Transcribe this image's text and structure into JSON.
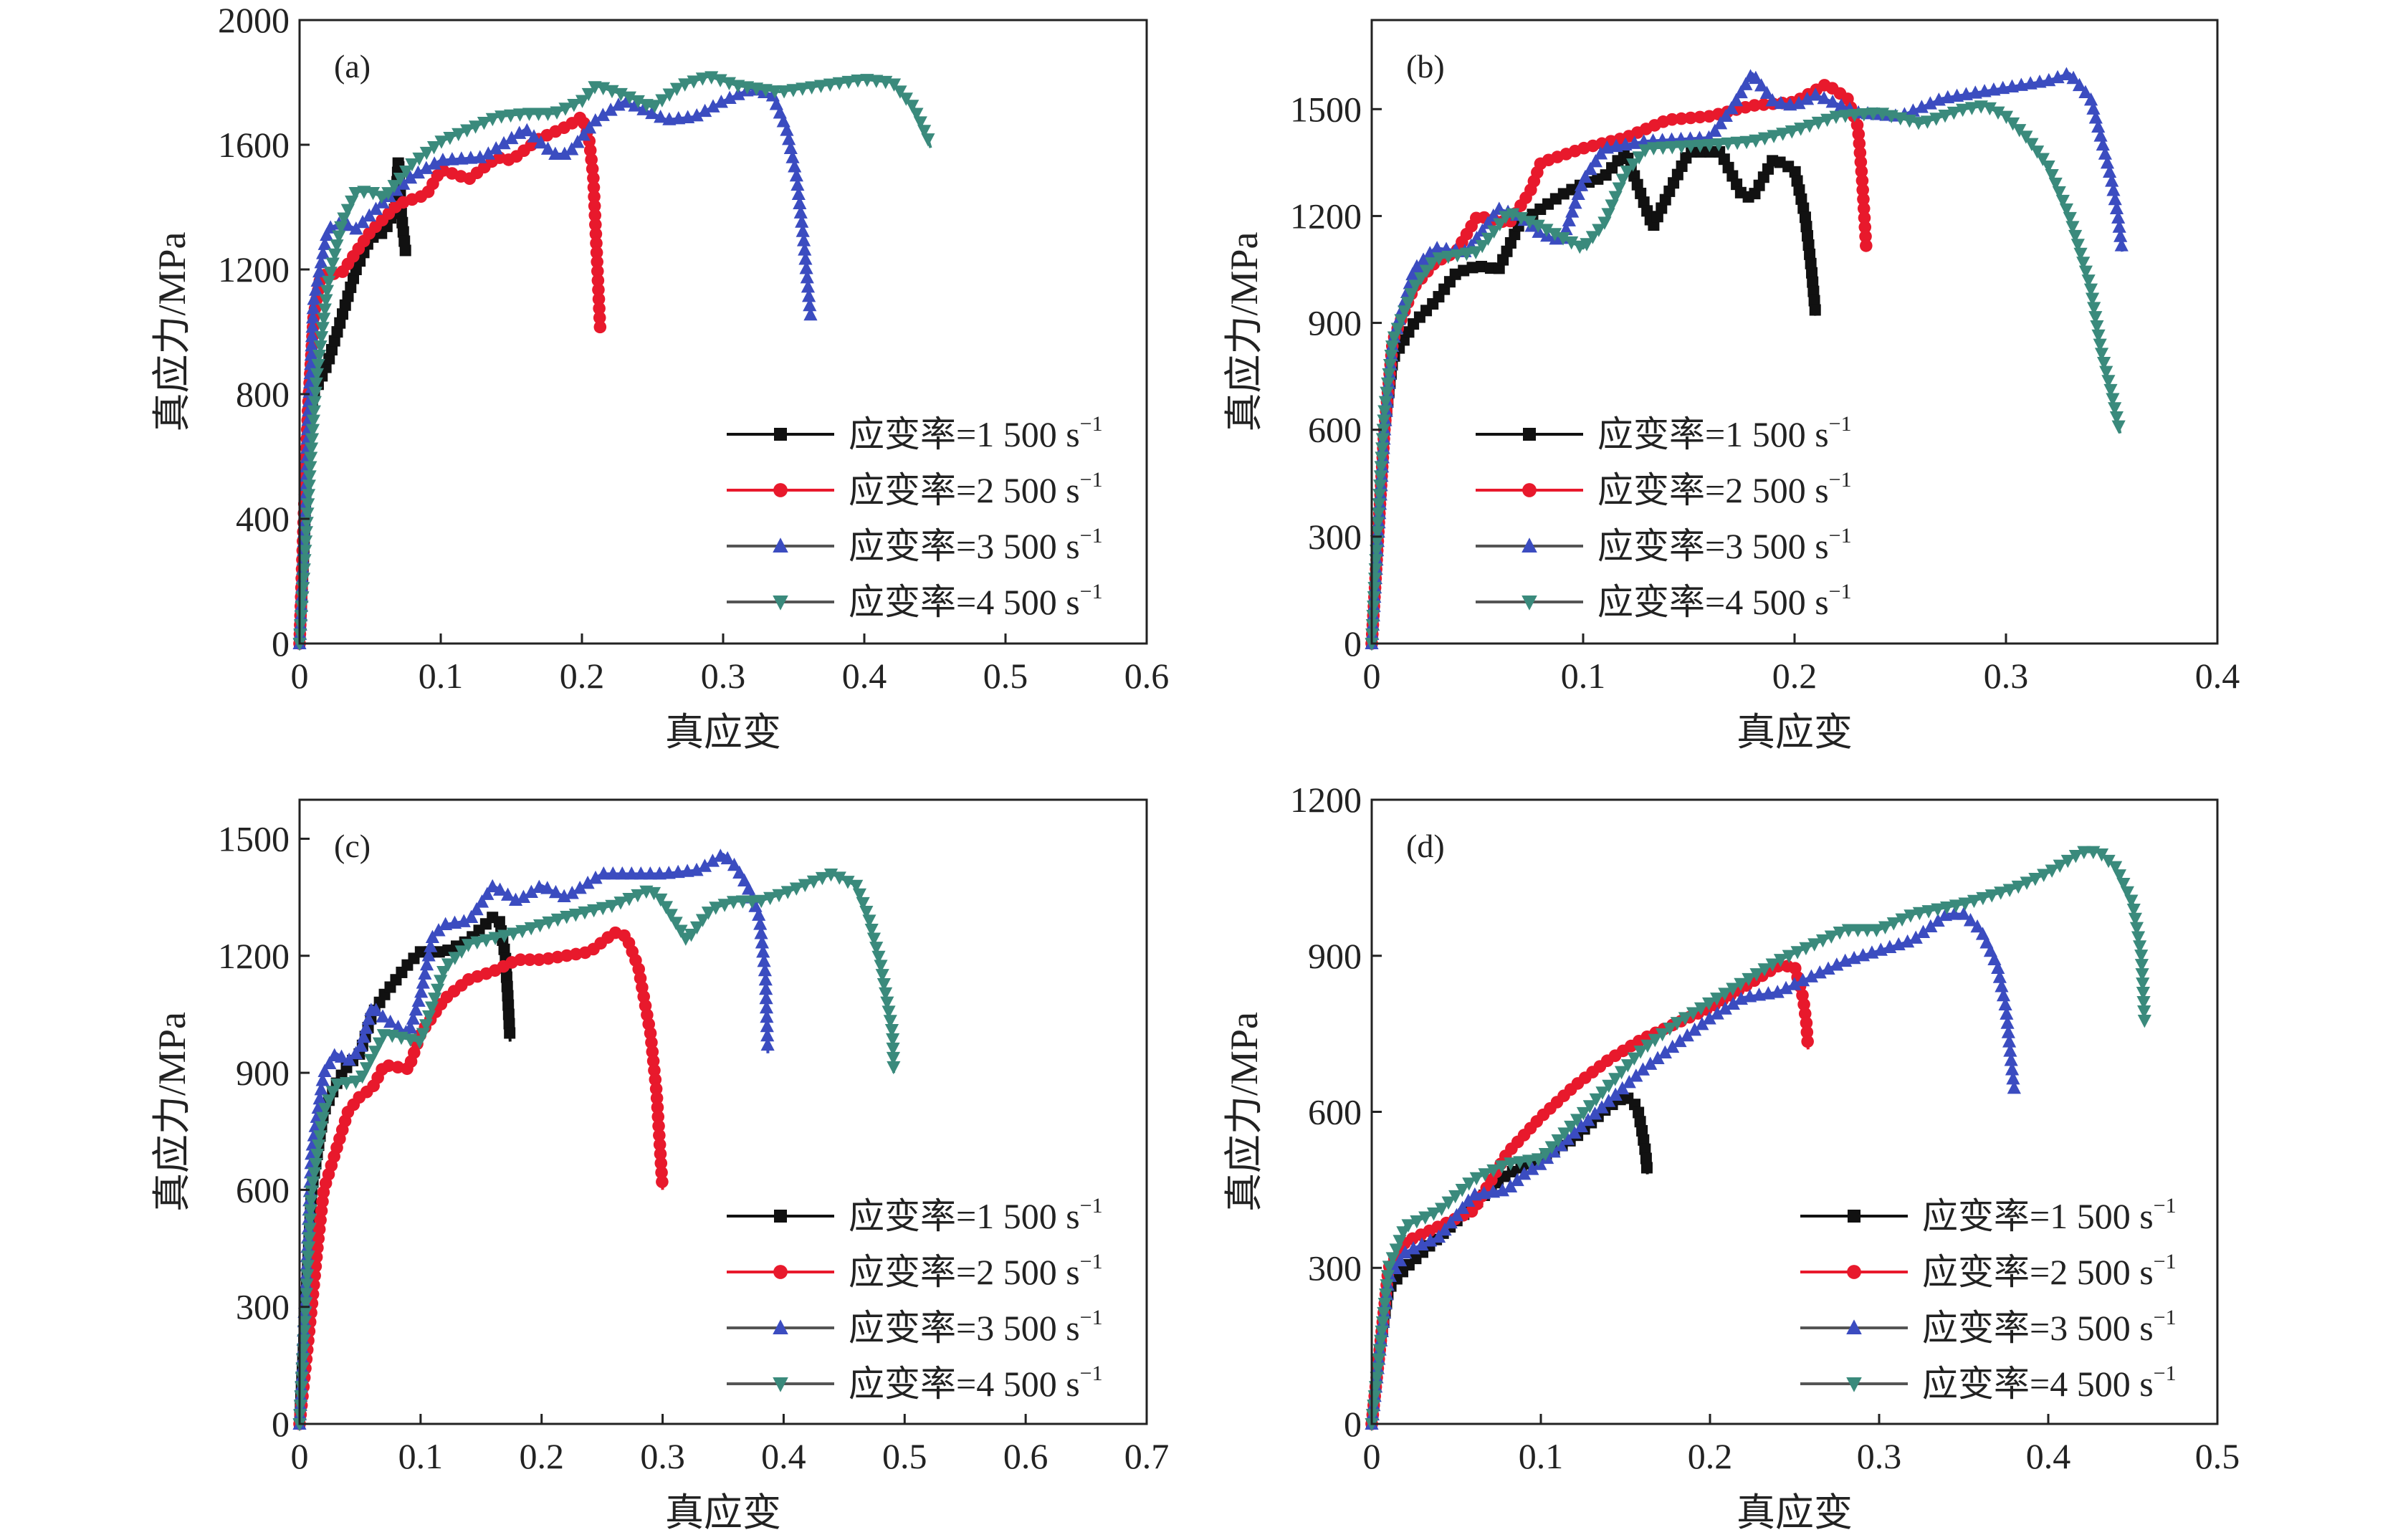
{
  "chart_data": [
    {
      "type": "line",
      "panel_label": "(a)",
      "xlabel": "真应变",
      "ylabel": "真应力/MPa",
      "xlim": [
        0,
        0.6
      ],
      "ylim": [
        0,
        2000
      ],
      "xticks": [
        0,
        0.1,
        0.2,
        0.3,
        0.4,
        0.5,
        0.6
      ],
      "xtick_labels": [
        "0",
        "0.1",
        "0.2",
        "0.3",
        "0.4",
        "0.5",
        "0.6"
      ],
      "yticks": [
        0,
        400,
        800,
        1200,
        1600,
        2000
      ],
      "ytick_labels": [
        "0",
        "400",
        "800",
        "1200",
        "1600",
        "2000"
      ],
      "grid": false,
      "legend_position": "lower-right",
      "series": [
        {
          "name": "应变率=1 500 s",
          "name_sup": "−1",
          "color": "#111111",
          "marker": "square",
          "x": [
            0,
            0.003,
            0.006,
            0.01,
            0.02,
            0.03,
            0.04,
            0.05,
            0.06,
            0.068,
            0.07,
            0.072,
            0.075
          ],
          "y": [
            0,
            300,
            700,
            800,
            900,
            1050,
            1200,
            1300,
            1320,
            1400,
            1550,
            1380,
            1260
          ]
        },
        {
          "name": "应变率=2 500 s",
          "name_sup": "−1",
          "color": "#e8192c",
          "marker": "circle",
          "x": [
            0,
            0.003,
            0.006,
            0.01,
            0.015,
            0.03,
            0.05,
            0.07,
            0.09,
            0.1,
            0.12,
            0.14,
            0.15,
            0.17,
            0.19,
            0.2,
            0.205,
            0.208,
            0.21,
            0.212,
            0.213
          ],
          "y": [
            0,
            400,
            750,
            1050,
            1180,
            1190,
            1320,
            1410,
            1440,
            1520,
            1490,
            1560,
            1550,
            1620,
            1660,
            1690,
            1620,
            1500,
            1300,
            1100,
            1000
          ]
        },
        {
          "name": "应变率=3 500 s",
          "name_sup": "−1",
          "color": "#3b4cc0",
          "marker": "triangle-up",
          "x": [
            0,
            0.003,
            0.006,
            0.01,
            0.02,
            0.03,
            0.04,
            0.06,
            0.08,
            0.1,
            0.13,
            0.16,
            0.18,
            0.19,
            0.21,
            0.23,
            0.26,
            0.28,
            0.3,
            0.32,
            0.335,
            0.345,
            0.352,
            0.357,
            0.36,
            0.362
          ],
          "y": [
            0,
            300,
            700,
            1100,
            1330,
            1350,
            1330,
            1420,
            1500,
            1550,
            1560,
            1650,
            1570,
            1570,
            1680,
            1740,
            1680,
            1690,
            1740,
            1780,
            1760,
            1650,
            1500,
            1300,
            1150,
            1050
          ]
        },
        {
          "name": "应变率=4 500 s",
          "name_sup": "−1",
          "color": "#3a8a7c",
          "marker": "triangle-down",
          "x": [
            0,
            0.004,
            0.008,
            0.012,
            0.02,
            0.03,
            0.04,
            0.05,
            0.06,
            0.08,
            0.1,
            0.12,
            0.14,
            0.16,
            0.18,
            0.2,
            0.21,
            0.23,
            0.25,
            0.27,
            0.29,
            0.31,
            0.34,
            0.37,
            0.4,
            0.42,
            0.435,
            0.445,
            0.447
          ],
          "y": [
            0,
            300,
            600,
            850,
            1150,
            1350,
            1450,
            1450,
            1430,
            1540,
            1610,
            1650,
            1690,
            1700,
            1700,
            1740,
            1790,
            1760,
            1720,
            1790,
            1820,
            1790,
            1770,
            1790,
            1810,
            1800,
            1720,
            1620,
            1590
          ]
        }
      ]
    },
    {
      "type": "line",
      "panel_label": "(b)",
      "xlabel": "真应变",
      "ylabel": "真应力/MPa",
      "xlim": [
        0,
        0.4
      ],
      "ylim": [
        0,
        1750
      ],
      "xticks": [
        0,
        0.1,
        0.2,
        0.3,
        0.4
      ],
      "xtick_labels": [
        "0",
        "0.1",
        "0.2",
        "0.3",
        "0.4"
      ],
      "yticks": [
        0,
        300,
        600,
        900,
        1200,
        1500
      ],
      "ytick_labels": [
        "0",
        "300",
        "600",
        "900",
        "1200",
        "1500"
      ],
      "grid": false,
      "legend_position": "lower-center",
      "series": [
        {
          "name": "应变率=1 500 s",
          "name_sup": "−1",
          "color": "#111111",
          "marker": "square",
          "x": [
            0,
            0.003,
            0.006,
            0.01,
            0.02,
            0.03,
            0.04,
            0.05,
            0.06,
            0.07,
            0.09,
            0.1,
            0.11,
            0.12,
            0.128,
            0.133,
            0.14,
            0.15,
            0.165,
            0.175,
            0.18,
            0.19,
            0.2,
            0.205,
            0.208,
            0.21
          ],
          "y": [
            0,
            300,
            600,
            800,
            900,
            960,
            1040,
            1060,
            1050,
            1180,
            1260,
            1290,
            1310,
            1380,
            1250,
            1170,
            1260,
            1380,
            1380,
            1260,
            1250,
            1360,
            1330,
            1200,
            1050,
            920
          ]
        },
        {
          "name": "应变率=2 500 s",
          "name_sup": "−1",
          "color": "#e8192c",
          "marker": "circle",
          "x": [
            0,
            0.003,
            0.006,
            0.01,
            0.02,
            0.03,
            0.04,
            0.05,
            0.065,
            0.075,
            0.08,
            0.1,
            0.12,
            0.14,
            0.16,
            0.18,
            0.2,
            0.215,
            0.225,
            0.23,
            0.232,
            0.234
          ],
          "y": [
            0,
            300,
            600,
            850,
            1000,
            1070,
            1100,
            1200,
            1180,
            1270,
            1350,
            1390,
            1420,
            1470,
            1480,
            1510,
            1520,
            1570,
            1530,
            1450,
            1300,
            1100
          ]
        },
        {
          "name": "应变率=3 500 s",
          "name_sup": "−1",
          "color": "#3b4cc0",
          "marker": "triangle-up",
          "x": [
            0,
            0.003,
            0.006,
            0.01,
            0.02,
            0.03,
            0.045,
            0.06,
            0.07,
            0.08,
            0.09,
            0.1,
            0.11,
            0.13,
            0.16,
            0.17,
            0.18,
            0.19,
            0.2,
            0.21,
            0.23,
            0.25,
            0.27,
            0.3,
            0.32,
            0.33,
            0.34,
            0.345,
            0.35,
            0.353,
            0.355
          ],
          "y": [
            0,
            300,
            600,
            850,
            1050,
            1110,
            1100,
            1220,
            1200,
            1150,
            1130,
            1300,
            1390,
            1410,
            1420,
            1500,
            1600,
            1520,
            1510,
            1540,
            1490,
            1480,
            1530,
            1560,
            1580,
            1600,
            1530,
            1420,
            1300,
            1200,
            1100
          ]
        },
        {
          "name": "应变率=4 500 s",
          "name_sup": "−1",
          "color": "#3a8a7c",
          "marker": "triangle-down",
          "x": [
            0,
            0.003,
            0.006,
            0.01,
            0.02,
            0.03,
            0.05,
            0.065,
            0.08,
            0.1,
            0.11,
            0.12,
            0.13,
            0.16,
            0.18,
            0.2,
            0.22,
            0.24,
            0.26,
            0.28,
            0.29,
            0.3,
            0.31,
            0.32,
            0.33,
            0.34,
            0.345,
            0.35,
            0.354
          ],
          "y": [
            0,
            350,
            650,
            850,
            1000,
            1080,
            1100,
            1210,
            1170,
            1110,
            1180,
            1320,
            1390,
            1400,
            1410,
            1440,
            1480,
            1490,
            1460,
            1500,
            1510,
            1480,
            1420,
            1340,
            1200,
            1000,
            820,
            700,
            590
          ]
        }
      ]
    },
    {
      "type": "line",
      "panel_label": "(c)",
      "xlabel": "真应变",
      "ylabel": "真应力/MPa",
      "xlim": [
        0,
        0.7
      ],
      "ylim": [
        0,
        1600
      ],
      "xticks": [
        0,
        0.1,
        0.2,
        0.3,
        0.4,
        0.5,
        0.6,
        0.7
      ],
      "xtick_labels": [
        "0",
        "0.1",
        "0.2",
        "0.3",
        "0.4",
        "0.5",
        "0.6",
        "0.7"
      ],
      "yticks": [
        0,
        300,
        600,
        900,
        1200,
        1500
      ],
      "ytick_labels": [
        "0",
        "300",
        "600",
        "900",
        "1200",
        "1500"
      ],
      "grid": false,
      "legend_position": "lower-right",
      "series": [
        {
          "name": "应变率=1 500 s",
          "name_sup": "−1",
          "color": "#111111",
          "marker": "square",
          "x": [
            0,
            0.005,
            0.01,
            0.02,
            0.03,
            0.04,
            0.05,
            0.06,
            0.07,
            0.08,
            0.09,
            0.1,
            0.12,
            0.14,
            0.16,
            0.165,
            0.17,
            0.172,
            0.174
          ],
          "y": [
            0,
            300,
            600,
            800,
            870,
            920,
            950,
            1050,
            1100,
            1140,
            1180,
            1210,
            1210,
            1240,
            1300,
            1290,
            1200,
            1100,
            980
          ]
        },
        {
          "name": "应变率=2 500 s",
          "name_sup": "−1",
          "color": "#e8192c",
          "marker": "circle",
          "x": [
            0,
            0.005,
            0.01,
            0.015,
            0.02,
            0.03,
            0.04,
            0.05,
            0.06,
            0.07,
            0.09,
            0.1,
            0.12,
            0.14,
            0.16,
            0.18,
            0.2,
            0.22,
            0.24,
            0.26,
            0.27,
            0.28,
            0.29,
            0.295,
            0.298,
            0.3
          ],
          "y": [
            0,
            150,
            300,
            460,
            600,
            700,
            800,
            840,
            860,
            920,
            910,
            1000,
            1090,
            1140,
            1160,
            1190,
            1190,
            1200,
            1210,
            1260,
            1250,
            1170,
            1000,
            850,
            700,
            600
          ]
        },
        {
          "name": "应变率=3 500 s",
          "name_sup": "−1",
          "color": "#3b4cc0",
          "marker": "triangle-up",
          "x": [
            0,
            0.005,
            0.01,
            0.02,
            0.03,
            0.04,
            0.05,
            0.06,
            0.07,
            0.09,
            0.1,
            0.11,
            0.12,
            0.14,
            0.16,
            0.18,
            0.2,
            0.22,
            0.25,
            0.3,
            0.33,
            0.35,
            0.36,
            0.37,
            0.38,
            0.385,
            0.387
          ],
          "y": [
            0,
            350,
            700,
            900,
            950,
            930,
            960,
            1070,
            1040,
            1000,
            1100,
            1250,
            1280,
            1290,
            1380,
            1340,
            1380,
            1350,
            1410,
            1410,
            1420,
            1460,
            1430,
            1380,
            1300,
            1150,
            950
          ]
        },
        {
          "name": "应变率=4 500 s",
          "name_sup": "−1",
          "color": "#3a8a7c",
          "marker": "triangle-down",
          "x": [
            0,
            0.005,
            0.01,
            0.02,
            0.03,
            0.05,
            0.07,
            0.1,
            0.12,
            0.14,
            0.18,
            0.22,
            0.26,
            0.29,
            0.3,
            0.32,
            0.34,
            0.36,
            0.38,
            0.4,
            0.44,
            0.46,
            0.47,
            0.48,
            0.49,
            0.491
          ],
          "y": [
            0,
            300,
            600,
            800,
            870,
            880,
            1000,
            980,
            1170,
            1230,
            1260,
            1300,
            1330,
            1370,
            1340,
            1240,
            1320,
            1340,
            1340,
            1360,
            1410,
            1380,
            1300,
            1180,
            1000,
            900
          ]
        }
      ]
    },
    {
      "type": "line",
      "panel_label": "(d)",
      "xlabel": "真应变",
      "ylabel": "真应力/MPa",
      "xlim": [
        0,
        0.5
      ],
      "ylim": [
        0,
        1200
      ],
      "xticks": [
        0,
        0.1,
        0.2,
        0.3,
        0.4,
        0.5
      ],
      "xtick_labels": [
        "0",
        "0.1",
        "0.2",
        "0.3",
        "0.4",
        "0.5"
      ],
      "yticks": [
        0,
        300,
        600,
        900,
        1200
      ],
      "ytick_labels": [
        "0",
        "300",
        "600",
        "900",
        "1200"
      ],
      "grid": false,
      "legend_position": "lower-right",
      "series": [
        {
          "name": "应变率=1 500 s",
          "name_sup": "−1",
          "color": "#111111",
          "marker": "square",
          "x": [
            0,
            0.005,
            0.01,
            0.02,
            0.04,
            0.06,
            0.08,
            0.1,
            0.12,
            0.14,
            0.15,
            0.157,
            0.16,
            0.162,
            0.163
          ],
          "y": [
            0,
            150,
            260,
            300,
            360,
            420,
            480,
            510,
            550,
            610,
            630,
            610,
            560,
            520,
            480
          ]
        },
        {
          "name": "应变率=2 500 s",
          "name_sup": "−1",
          "color": "#e8192c",
          "marker": "circle",
          "x": [
            0,
            0.005,
            0.01,
            0.02,
            0.04,
            0.06,
            0.08,
            0.1,
            0.12,
            0.14,
            0.16,
            0.18,
            0.2,
            0.22,
            0.24,
            0.25,
            0.255,
            0.257,
            0.258
          ],
          "y": [
            0,
            150,
            300,
            350,
            380,
            410,
            520,
            590,
            650,
            700,
            740,
            770,
            800,
            840,
            880,
            880,
            820,
            770,
            720
          ]
        },
        {
          "name": "应变率=3 500 s",
          "name_sup": "−1",
          "color": "#3b4cc0",
          "marker": "triangle-up",
          "x": [
            0,
            0.005,
            0.01,
            0.02,
            0.04,
            0.06,
            0.08,
            0.09,
            0.1,
            0.12,
            0.14,
            0.16,
            0.18,
            0.2,
            0.22,
            0.24,
            0.26,
            0.28,
            0.3,
            0.32,
            0.34,
            0.35,
            0.36,
            0.37,
            0.375,
            0.378,
            0.38
          ],
          "y": [
            0,
            150,
            280,
            330,
            360,
            440,
            450,
            480,
            500,
            560,
            620,
            680,
            730,
            780,
            820,
            830,
            860,
            890,
            910,
            930,
            980,
            980,
            950,
            880,
            800,
            700,
            640
          ]
        },
        {
          "name": "应变率=4 500 s",
          "name_sup": "−1",
          "color": "#3a8a7c",
          "marker": "triangle-down",
          "x": [
            0,
            0.005,
            0.01,
            0.02,
            0.04,
            0.06,
            0.08,
            0.1,
            0.12,
            0.14,
            0.16,
            0.18,
            0.2,
            0.22,
            0.24,
            0.26,
            0.28,
            0.3,
            0.32,
            0.35,
            0.38,
            0.4,
            0.42,
            0.43,
            0.44,
            0.45,
            0.455,
            0.457
          ],
          "y": [
            0,
            150,
            300,
            380,
            410,
            470,
            500,
            510,
            580,
            650,
            720,
            770,
            810,
            850,
            890,
            920,
            950,
            950,
            980,
            1000,
            1030,
            1060,
            1100,
            1100,
            1070,
            1000,
            900,
            770
          ]
        }
      ]
    }
  ]
}
